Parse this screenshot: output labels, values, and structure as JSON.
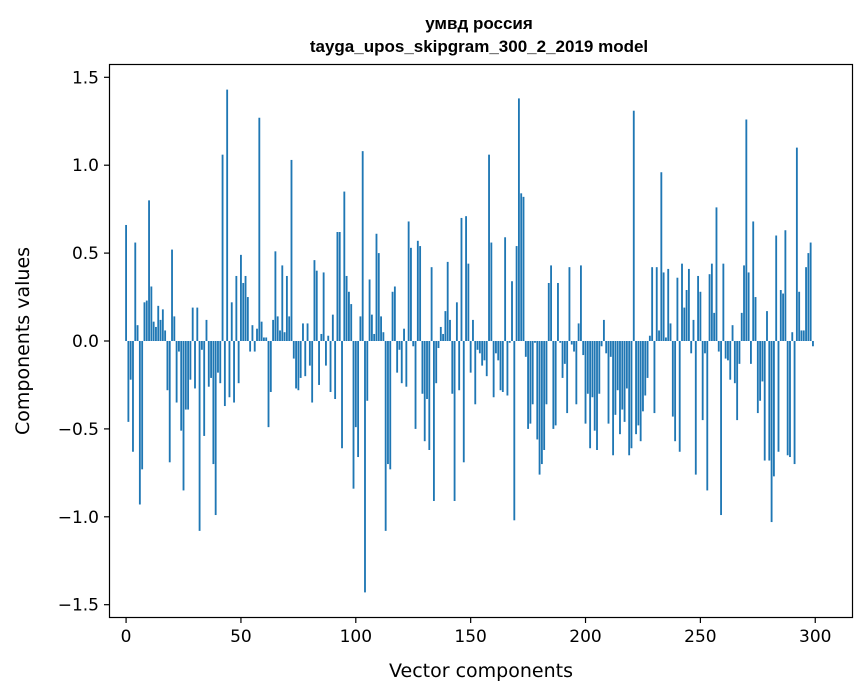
{
  "chart_data": {
    "type": "bar",
    "title_line1": "умвд россия",
    "title_line2": "tayga_upos_skipgram_300_2_2019 model",
    "xlabel": "Vector components",
    "ylabel": "Components values",
    "xlim": [
      -7,
      316
    ],
    "ylim": [
      -1.57,
      1.57
    ],
    "xticks": [
      0,
      50,
      100,
      150,
      200,
      250,
      300
    ],
    "xtick_labels": [
      "0",
      "50",
      "100",
      "150",
      "200",
      "250",
      "300"
    ],
    "yticks": [
      -1.5,
      -1.0,
      -0.5,
      0.0,
      0.5,
      1.0,
      1.5
    ],
    "ytick_labels": [
      "−1.5",
      "−1.0",
      "−0.5",
      "0.0",
      "0.5",
      "1.0",
      "1.5"
    ],
    "bar_color": "#1f77b4",
    "values": [
      0.66,
      -0.46,
      -0.22,
      -0.63,
      0.56,
      0.09,
      -0.93,
      -0.73,
      0.22,
      0.23,
      0.8,
      0.31,
      0.11,
      0.08,
      0.2,
      0.12,
      0.18,
      0.06,
      -0.28,
      -0.69,
      0.52,
      0.14,
      -0.35,
      -0.06,
      -0.51,
      -0.85,
      -0.39,
      -0.39,
      -0.22,
      0.19,
      -0.27,
      0.19,
      -1.08,
      -0.05,
      -0.54,
      0.12,
      -0.26,
      -0.21,
      -0.7,
      -0.99,
      -0.18,
      -0.24,
      1.06,
      -0.37,
      1.43,
      -0.32,
      0.22,
      -0.35,
      0.37,
      -0.24,
      0.49,
      0.33,
      0.37,
      0.25,
      -0.06,
      0.09,
      -0.06,
      0.07,
      1.27,
      0.11,
      0.02,
      0.02,
      -0.49,
      -0.29,
      0.12,
      0.51,
      0.14,
      0.06,
      0.43,
      0.05,
      0.37,
      0.14,
      1.03,
      -0.1,
      -0.27,
      -0.28,
      -0.21,
      0.1,
      -0.2,
      0.1,
      -0.14,
      -0.35,
      0.46,
      0.4,
      -0.25,
      0.04,
      0.39,
      -0.14,
      0.03,
      -0.29,
      0.15,
      -0.33,
      0.62,
      0.62,
      -0.61,
      0.85,
      0.37,
      0.28,
      0.21,
      -0.84,
      -0.49,
      -0.66,
      0.14,
      1.08,
      -1.43,
      -0.34,
      0.35,
      0.15,
      0.04,
      0.61,
      0.5,
      0.14,
      0.05,
      -1.08,
      -0.7,
      -0.73,
      0.28,
      0.31,
      -0.18,
      -0.05,
      -0.24,
      0.07,
      -0.26,
      0.68,
      0.53,
      -0.03,
      -0.5,
      0.57,
      0.54,
      -0.3,
      -0.57,
      -0.33,
      -0.62,
      0.42,
      -0.91,
      -0.24,
      -0.04,
      0.08,
      0.04,
      0.17,
      0.45,
      0.12,
      -0.3,
      -0.91,
      0.22,
      -0.28,
      0.7,
      -0.69,
      0.71,
      0.44,
      -0.18,
      0.12,
      -0.36,
      -0.05,
      -0.07,
      -0.14,
      -0.11,
      -0.2,
      1.06,
      0.56,
      -0.32,
      -0.07,
      -0.11,
      -0.28,
      -0.29,
      0.59,
      -0.31,
      -0.01,
      0.34,
      -1.02,
      0.54,
      1.38,
      0.84,
      0.82,
      -0.09,
      -0.5,
      -0.47,
      -0.36,
      -0.01,
      -0.56,
      -0.76,
      -0.7,
      -0.62,
      -0.36,
      0.33,
      0.43,
      -0.5,
      -0.48,
      0.33,
      -0.01,
      -0.21,
      -0.13,
      -0.41,
      0.42,
      -0.02,
      -0.06,
      -0.36,
      0.1,
      0.43,
      -0.08,
      -0.47,
      -0.3,
      -0.61,
      -0.32,
      -0.51,
      -0.62,
      -0.3,
      -0.03,
      0.12,
      -0.07,
      -0.47,
      -0.09,
      -0.65,
      -0.42,
      -0.28,
      -0.53,
      -0.39,
      -0.46,
      -0.27,
      -0.65,
      -0.61,
      1.31,
      -0.53,
      -0.48,
      -0.57,
      -0.4,
      -0.31,
      -0.21,
      0.03,
      0.42,
      -0.41,
      0.42,
      0.06,
      0.96,
      0.39,
      0.02,
      0.41,
      0.1,
      -0.43,
      -0.57,
      0.36,
      -0.63,
      0.44,
      0.19,
      0.29,
      0.41,
      -0.07,
      0.12,
      -0.76,
      0.37,
      0.28,
      -0.45,
      -0.07,
      -0.85,
      0.38,
      0.44,
      0.16,
      0.76,
      -0.06,
      -0.99,
      0.44,
      -0.1,
      -0.11,
      -0.22,
      0.09,
      -0.24,
      -0.45,
      -0.13,
      0.16,
      0.43,
      1.26,
      0.39,
      -0.13,
      0.68,
      0.25,
      -0.41,
      -0.34,
      -0.23,
      -0.68,
      0.17,
      -0.68,
      -1.03,
      -0.77,
      0.6,
      -0.63,
      0.29,
      0.27,
      0.63,
      -0.65,
      -0.66,
      0.05,
      -0.7,
      1.1,
      0.28,
      0.06,
      0.06,
      0.42,
      0.5,
      0.56,
      -0.03
    ]
  }
}
